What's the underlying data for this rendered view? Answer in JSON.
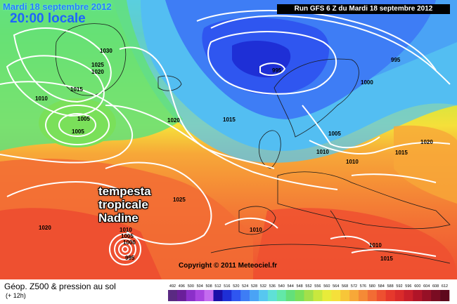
{
  "header": {
    "date": "Mardi 18 septembre 2012",
    "time": "20:00 locale",
    "run": "Run GFS 6 Z du Mardi 18 septembre 2012"
  },
  "annotation": {
    "storm_lines": [
      "tempesta",
      "tropicale",
      "Nadine"
    ]
  },
  "copyright": "Copyright © 2011 Meteociel.fr",
  "footer": {
    "title": "Géop. Z500 & pression au sol",
    "subtitle": "(+ 12h)"
  },
  "isobar_labels": [
    {
      "text": "1030",
      "name": "isobar-label-1030-greenland"
    },
    {
      "text": "1025",
      "name": "isobar-label-1025-greenland"
    },
    {
      "text": "1020",
      "name": "isobar-label-1020-greenland"
    },
    {
      "text": "1015",
      "name": "isobar-label-1015-greenland"
    },
    {
      "text": "1010",
      "name": "isobar-label-1010-west"
    },
    {
      "text": "1005",
      "name": "isobar-label-1005-low-a"
    },
    {
      "text": "1005",
      "name": "isobar-label-1005-low-b"
    },
    {
      "text": "1020",
      "name": "isobar-label-1020-atlantic"
    },
    {
      "text": "1015",
      "name": "isobar-label-1015-atlantic"
    },
    {
      "text": "995",
      "name": "isobar-label-995-low-center"
    },
    {
      "text": "995",
      "name": "isobar-label-995-east"
    },
    {
      "text": "1000",
      "name": "isobar-label-1000-scandinavia"
    },
    {
      "text": "1005",
      "name": "isobar-label-1005-northsea"
    },
    {
      "text": "1010",
      "name": "isobar-label-1010-europe"
    },
    {
      "text": "1010",
      "name": "isobar-label-1010-balkans"
    },
    {
      "text": "1015",
      "name": "isobar-label-1015-east"
    },
    {
      "text": "1020",
      "name": "isobar-label-1020-east"
    },
    {
      "text": "1025",
      "name": "isobar-label-1025-azores"
    },
    {
      "text": "1020",
      "name": "isobar-label-1020-southwest"
    },
    {
      "text": "1010",
      "name": "isobar-label-1010-nadine"
    },
    {
      "text": "1005",
      "name": "isobar-label-1005-nadine"
    },
    {
      "text": "1000",
      "name": "isobar-label-1000-nadine"
    },
    {
      "text": "995",
      "name": "isobar-label-995-nadine"
    },
    {
      "text": "1010",
      "name": "isobar-label-1010-iberia"
    },
    {
      "text": "1010",
      "name": "isobar-label-1010-mediterranean"
    },
    {
      "text": "1015",
      "name": "isobar-label-1015-africa"
    }
  ],
  "color_scale": {
    "labels": [
      "492",
      "496",
      "500",
      "504",
      "508",
      "512",
      "516",
      "520",
      "524",
      "528",
      "532",
      "536",
      "540",
      "544",
      "548",
      "552",
      "556",
      "560",
      "564",
      "568",
      "572",
      "576",
      "580",
      "584",
      "588",
      "592",
      "596",
      "600",
      "604",
      "608",
      "612"
    ],
    "colors": [
      "#5a2a82",
      "#6a1f9a",
      "#8b2fc9",
      "#a845e0",
      "#c46cf0",
      "#1a0fa8",
      "#1e2fd6",
      "#2f56f0",
      "#3e7df5",
      "#4aa3f5",
      "#57c7f0",
      "#5fe0d6",
      "#63e8a8",
      "#63e07a",
      "#7ae05a",
      "#a3e04a",
      "#c8e83e",
      "#e8ec3a",
      "#f5e03a",
      "#f7c638",
      "#f7a838",
      "#f58a36",
      "#f26c34",
      "#ee5030",
      "#e6382c",
      "#da2a2a",
      "#c81e2a",
      "#b01428",
      "#961026",
      "#7a0c22",
      "#5e081c"
    ]
  }
}
